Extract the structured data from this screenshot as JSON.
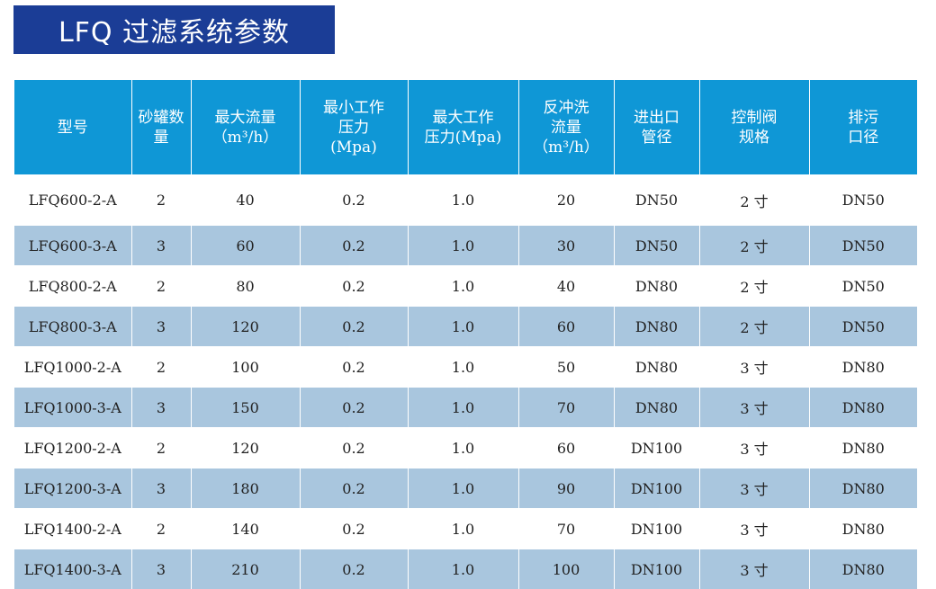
{
  "title": "LFQ 过滤系统参数",
  "colors": {
    "title_bg": "#1b3d96",
    "header_bg": "#0f97d6",
    "stripe_bg": "#a9c6de"
  },
  "table": {
    "headers": [
      [
        "型号"
      ],
      [
        "砂罐数",
        "量"
      ],
      [
        "最大流量",
        "（m³/h）"
      ],
      [
        "最小工作",
        "压力",
        "(Mpa)"
      ],
      [
        "最大工作",
        "压力(Mpa)"
      ],
      [
        "反冲洗",
        "流量",
        "（m³/h）"
      ],
      [
        "进出口",
        "管径"
      ],
      [
        "控制阀",
        "规格"
      ],
      [
        "排污",
        "口径"
      ]
    ],
    "rows": [
      [
        "LFQ600-2-A",
        "2",
        "40",
        "0.2",
        "1.0",
        "20",
        "DN50",
        "2 寸",
        "DN50"
      ],
      [
        "LFQ600-3-A",
        "3",
        "60",
        "0.2",
        "1.0",
        "30",
        "DN50",
        "2 寸",
        "DN50"
      ],
      [
        "LFQ800-2-A",
        "2",
        "80",
        "0.2",
        "1.0",
        "40",
        "DN80",
        "2 寸",
        "DN50"
      ],
      [
        "LFQ800-3-A",
        "3",
        "120",
        "0.2",
        "1.0",
        "60",
        "DN80",
        "2 寸",
        "DN50"
      ],
      [
        "LFQ1000-2-A",
        "2",
        "100",
        "0.2",
        "1.0",
        "50",
        "DN80",
        "3 寸",
        "DN80"
      ],
      [
        "LFQ1000-3-A",
        "3",
        "150",
        "0.2",
        "1.0",
        "70",
        "DN80",
        "3 寸",
        "DN80"
      ],
      [
        "LFQ1200-2-A",
        "2",
        "120",
        "0.2",
        "1.0",
        "60",
        "DN100",
        "3 寸",
        "DN80"
      ],
      [
        "LFQ1200-3-A",
        "3",
        "180",
        "0.2",
        "1.0",
        "90",
        "DN100",
        "3 寸",
        "DN80"
      ],
      [
        "LFQ1400-2-A",
        "2",
        "140",
        "0.2",
        "1.0",
        "70",
        "DN100",
        "3 寸",
        "DN80"
      ],
      [
        "LFQ1400-3-A",
        "3",
        "210",
        "0.2",
        "1.0",
        "100",
        "DN100",
        "3 寸",
        "DN80"
      ]
    ]
  }
}
